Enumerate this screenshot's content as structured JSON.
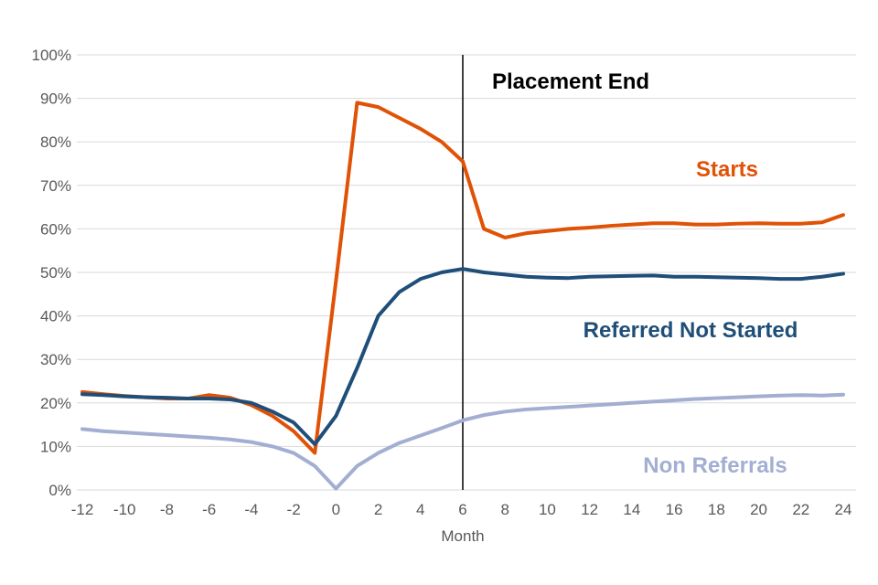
{
  "chart_data": {
    "type": "line",
    "title": "",
    "xlabel": "Month",
    "ylabel": "",
    "xlim": [
      -12,
      24
    ],
    "ylim": [
      0,
      100
    ],
    "grid": true,
    "grid_color": "#d9d9d9",
    "tick_color": "#595959",
    "legend_position": "inline-labels",
    "y_ticks": [
      0,
      10,
      20,
      30,
      40,
      50,
      60,
      70,
      80,
      90,
      100
    ],
    "y_tick_labels": [
      "0%",
      "10%",
      "20%",
      "30%",
      "40%",
      "50%",
      "60%",
      "70%",
      "80%",
      "90%",
      "100%"
    ],
    "x_ticks": [
      -12,
      -10,
      -8,
      -6,
      -4,
      -2,
      0,
      2,
      4,
      6,
      8,
      10,
      12,
      14,
      16,
      18,
      20,
      22,
      24
    ],
    "x": [
      -12,
      -11,
      -10,
      -9,
      -8,
      -7,
      -6,
      -5,
      -4,
      -3,
      -2,
      -1,
      0,
      1,
      2,
      3,
      4,
      5,
      6,
      7,
      8,
      9,
      10,
      11,
      12,
      13,
      14,
      15,
      16,
      17,
      18,
      19,
      20,
      21,
      22,
      23,
      24
    ],
    "marker": {
      "x": 6,
      "label": "Placement End",
      "color": "#000000"
    },
    "series": [
      {
        "name": "Starts",
        "color": "#e05206",
        "values": [
          22.5,
          22,
          21.6,
          21.3,
          21,
          21,
          21.8,
          21.2,
          19.5,
          17,
          13.5,
          8.5,
          48,
          89,
          88,
          85.5,
          83,
          80,
          75.5,
          60,
          58,
          59,
          59.5,
          60,
          60.3,
          60.7,
          61,
          61.3,
          61.3,
          61,
          61,
          61.2,
          61.3,
          61.2,
          61.2,
          61.5,
          63.2
        ]
      },
      {
        "name": "Referred Not Started",
        "color": "#1f4e79",
        "values": [
          22,
          21.8,
          21.5,
          21.3,
          21.2,
          21,
          21,
          20.8,
          20,
          18,
          15.5,
          10.5,
          17,
          28,
          40,
          45.5,
          48.5,
          50,
          50.8,
          50,
          49.5,
          49,
          48.8,
          48.7,
          49,
          49.1,
          49.2,
          49.3,
          49,
          49,
          48.9,
          48.8,
          48.7,
          48.5,
          48.5,
          49,
          49.7
        ]
      },
      {
        "name": "Non Referrals",
        "color": "#a2aed2",
        "values": [
          14,
          13.5,
          13.2,
          12.9,
          12.6,
          12.3,
          12,
          11.6,
          11,
          10,
          8.5,
          5.5,
          0.3,
          5.5,
          8.5,
          10.8,
          12.5,
          14.2,
          16,
          17.2,
          18,
          18.5,
          18.8,
          19.1,
          19.4,
          19.7,
          20,
          20.3,
          20.6,
          20.9,
          21.1,
          21.3,
          21.5,
          21.7,
          21.8,
          21.7,
          21.9
        ]
      }
    ]
  }
}
